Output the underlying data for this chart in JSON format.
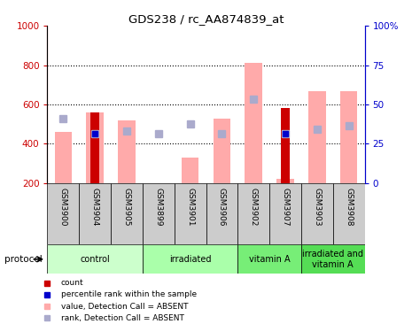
{
  "title": "GDS238 / rc_AA874839_at",
  "samples": [
    "GSM3900",
    "GSM3904",
    "GSM3905",
    "GSM3899",
    "GSM3901",
    "GSM3906",
    "GSM3902",
    "GSM3907",
    "GSM3903",
    "GSM3908"
  ],
  "ylim_left": [
    200,
    1000
  ],
  "ylim_right": [
    0,
    100
  ],
  "y_ticks_left": [
    200,
    400,
    600,
    800,
    1000
  ],
  "y_ticks_right": [
    0,
    25,
    50,
    75,
    100
  ],
  "pink_value": [
    460,
    560,
    520,
    200,
    330,
    530,
    810,
    220,
    670,
    670
  ],
  "blue_rank": [
    530,
    450,
    465,
    450,
    500,
    450,
    625,
    450,
    475,
    490
  ],
  "red_count": [
    null,
    560,
    null,
    null,
    null,
    null,
    null,
    580,
    null,
    null
  ],
  "blue_percentile": [
    null,
    450,
    null,
    null,
    null,
    null,
    null,
    450,
    null,
    null
  ],
  "protocol_groups": [
    {
      "label": "control",
      "start": 0,
      "end": 2,
      "color": "#ccffcc"
    },
    {
      "label": "irradiated",
      "start": 3,
      "end": 5,
      "color": "#aaffaa"
    },
    {
      "label": "vitamin A",
      "start": 6,
      "end": 7,
      "color": "#77ee77"
    },
    {
      "label": "irradiated and\nvitamin A",
      "start": 8,
      "end": 9,
      "color": "#55dd55"
    }
  ],
  "bg_color": "#ffffff",
  "left_axis_color": "#cc0000",
  "right_axis_color": "#0000cc",
  "pink_color": "#ffaaaa",
  "light_blue_color": "#aaaacc",
  "red_color": "#cc0000",
  "blue_color": "#0000cc",
  "xtick_bg": "#cccccc",
  "grid_dotted": [
    400,
    600,
    800
  ]
}
